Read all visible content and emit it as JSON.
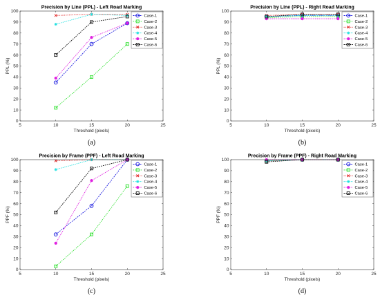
{
  "colors": {
    "Case-1": "#1f1fe0",
    "Case-2": "#2ee02e",
    "Case-3": "#e02020",
    "Case-4": "#20e0e0",
    "Case-5": "#e020e0",
    "Case-6": "#111111"
  },
  "chart_data": [
    {
      "type": "line",
      "title": "Precision by Line (PPL) - Left Road Marking",
      "xlabel": "Threshold (pixels)",
      "ylabel": "PPL (%)",
      "caption": "(a)",
      "xlim": [
        5,
        25
      ],
      "ylim": [
        0,
        100
      ],
      "xticks": [
        5,
        10,
        15,
        20,
        25
      ],
      "yticks": [
        0,
        10,
        20,
        30,
        40,
        50,
        60,
        70,
        80,
        90,
        100
      ],
      "legend": "top-right",
      "x": [
        10,
        15,
        20
      ],
      "series": [
        {
          "name": "Case-1",
          "values": [
            35,
            70,
            89
          ]
        },
        {
          "name": "Case-2",
          "values": [
            12,
            40,
            70
          ]
        },
        {
          "name": "Case-3",
          "values": [
            96,
            97,
            97
          ]
        },
        {
          "name": "Case-4",
          "values": [
            88,
            97,
            96
          ]
        },
        {
          "name": "Case-5",
          "values": [
            39,
            76,
            89
          ]
        },
        {
          "name": "Case-6",
          "values": [
            60,
            90,
            95
          ]
        }
      ]
    },
    {
      "type": "line",
      "title": "Precision by Line (PPL) - Right Road Marking",
      "xlabel": "Threshold (pixels)",
      "ylabel": "PPL (%)",
      "caption": "(b)",
      "xlim": [
        5,
        25
      ],
      "ylim": [
        0,
        100
      ],
      "xticks": [
        5,
        10,
        15,
        20,
        25
      ],
      "yticks": [
        0,
        10,
        20,
        30,
        40,
        50,
        60,
        70,
        80,
        90,
        100
      ],
      "legend": "top-right",
      "x": [
        10,
        15,
        20
      ],
      "series": [
        {
          "name": "Case-1",
          "values": [
            95,
            96,
            96
          ]
        },
        {
          "name": "Case-2",
          "values": [
            94,
            95,
            95
          ]
        },
        {
          "name": "Case-3",
          "values": [
            96,
            97,
            97
          ]
        },
        {
          "name": "Case-4",
          "values": [
            95,
            96,
            96
          ]
        },
        {
          "name": "Case-5",
          "values": [
            93,
            93,
            93
          ]
        },
        {
          "name": "Case-6",
          "values": [
            95,
            97,
            97
          ]
        }
      ]
    },
    {
      "type": "line",
      "title": "Precision by Frame (PPF) - Left Road Marking",
      "xlabel": "Threshold (pixels)",
      "ylabel": "PPF (%)",
      "caption": "(c)",
      "xlim": [
        5,
        25
      ],
      "ylim": [
        0,
        100
      ],
      "xticks": [
        5,
        10,
        15,
        20,
        25
      ],
      "yticks": [
        0,
        10,
        20,
        30,
        40,
        50,
        60,
        70,
        80,
        90,
        100
      ],
      "legend": "top-right",
      "x": [
        10,
        15,
        20
      ],
      "series": [
        {
          "name": "Case-1",
          "values": [
            32,
            58,
            100
          ]
        },
        {
          "name": "Case-2",
          "values": [
            3,
            32,
            76
          ]
        },
        {
          "name": "Case-3",
          "values": [
            99,
            100,
            100
          ]
        },
        {
          "name": "Case-4",
          "values": [
            91,
            100,
            100
          ]
        },
        {
          "name": "Case-5",
          "values": [
            24,
            81,
            100
          ]
        },
        {
          "name": "Case-6",
          "values": [
            52,
            92,
            100
          ]
        }
      ]
    },
    {
      "type": "line",
      "title": "Precision by Frame (PPF) - Right Road Marking",
      "xlabel": "Threshold (pixels)",
      "ylabel": "PPF (%)",
      "caption": "(d)",
      "xlim": [
        5,
        25
      ],
      "ylim": [
        0,
        100
      ],
      "xticks": [
        5,
        10,
        15,
        20,
        25
      ],
      "yticks": [
        0,
        10,
        20,
        30,
        40,
        50,
        60,
        70,
        80,
        90,
        100
      ],
      "legend": "top-right",
      "x": [
        10,
        15,
        20
      ],
      "series": [
        {
          "name": "Case-1",
          "values": [
            99,
            100,
            100
          ]
        },
        {
          "name": "Case-2",
          "values": [
            99,
            100,
            100
          ]
        },
        {
          "name": "Case-3",
          "values": [
            99,
            100,
            100
          ]
        },
        {
          "name": "Case-4",
          "values": [
            99,
            100,
            100
          ]
        },
        {
          "name": "Case-5",
          "values": [
            100,
            100,
            100
          ]
        },
        {
          "name": "Case-6",
          "values": [
            98,
            100,
            100
          ]
        }
      ]
    }
  ]
}
